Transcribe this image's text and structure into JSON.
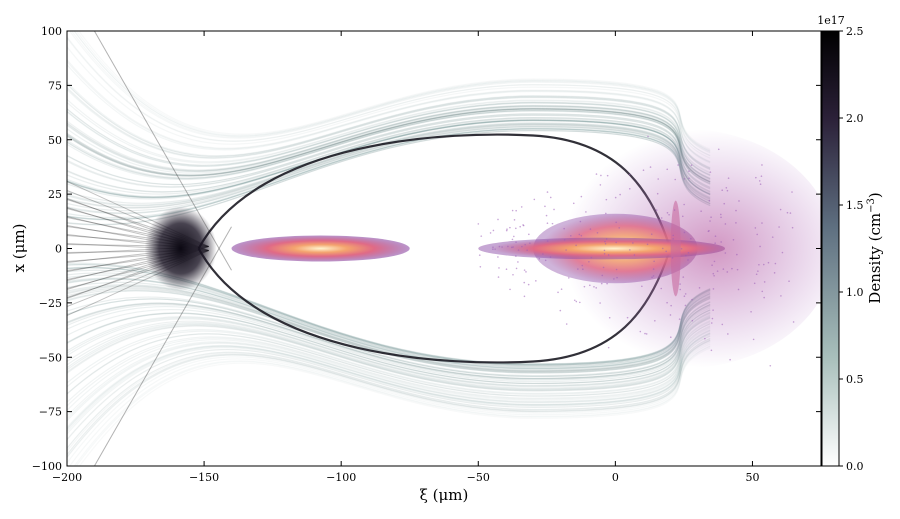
{
  "chart_data": {
    "type": "heatmap",
    "title": "",
    "xlabel": "ξ (μm)",
    "ylabel": "x (μm)",
    "xlim": [
      -200,
      75
    ],
    "ylim": [
      -100,
      100
    ],
    "xticks": [
      -200,
      -150,
      -100,
      -50,
      0,
      50
    ],
    "yticks": [
      -100,
      -75,
      -50,
      -25,
      0,
      25,
      50,
      75,
      100
    ],
    "colorbar": {
      "label_main": "Density (cm",
      "label_exp": "−3",
      "label_close": ")",
      "multiplier": "1e17",
      "range": [
        0.0,
        2.5
      ],
      "ticks": [
        "0.0",
        "0.5",
        "1.0",
        "1.5",
        "2.0",
        "2.5"
      ],
      "colors": [
        "#ffffff",
        "#a8bfbb",
        "#5e6f80",
        "#2b2038",
        "#000000"
      ]
    },
    "features": {
      "bubble_sheath": {
        "description_visible": false,
        "rear_vertex_xi": -152,
        "front_xi": 20,
        "max_half_width_x": 53,
        "color": "#7fa2a0"
      },
      "witness_bunch": {
        "xi_range": [
          -140,
          -75
        ],
        "x_half_width": 6
      },
      "drive_bunch": {
        "xi_range": [
          -50,
          65
        ],
        "x_half_width": 55
      },
      "beam_colors": [
        "#8e4fa8",
        "#e06a86",
        "#f4a46e",
        "#fff4cf"
      ]
    }
  }
}
